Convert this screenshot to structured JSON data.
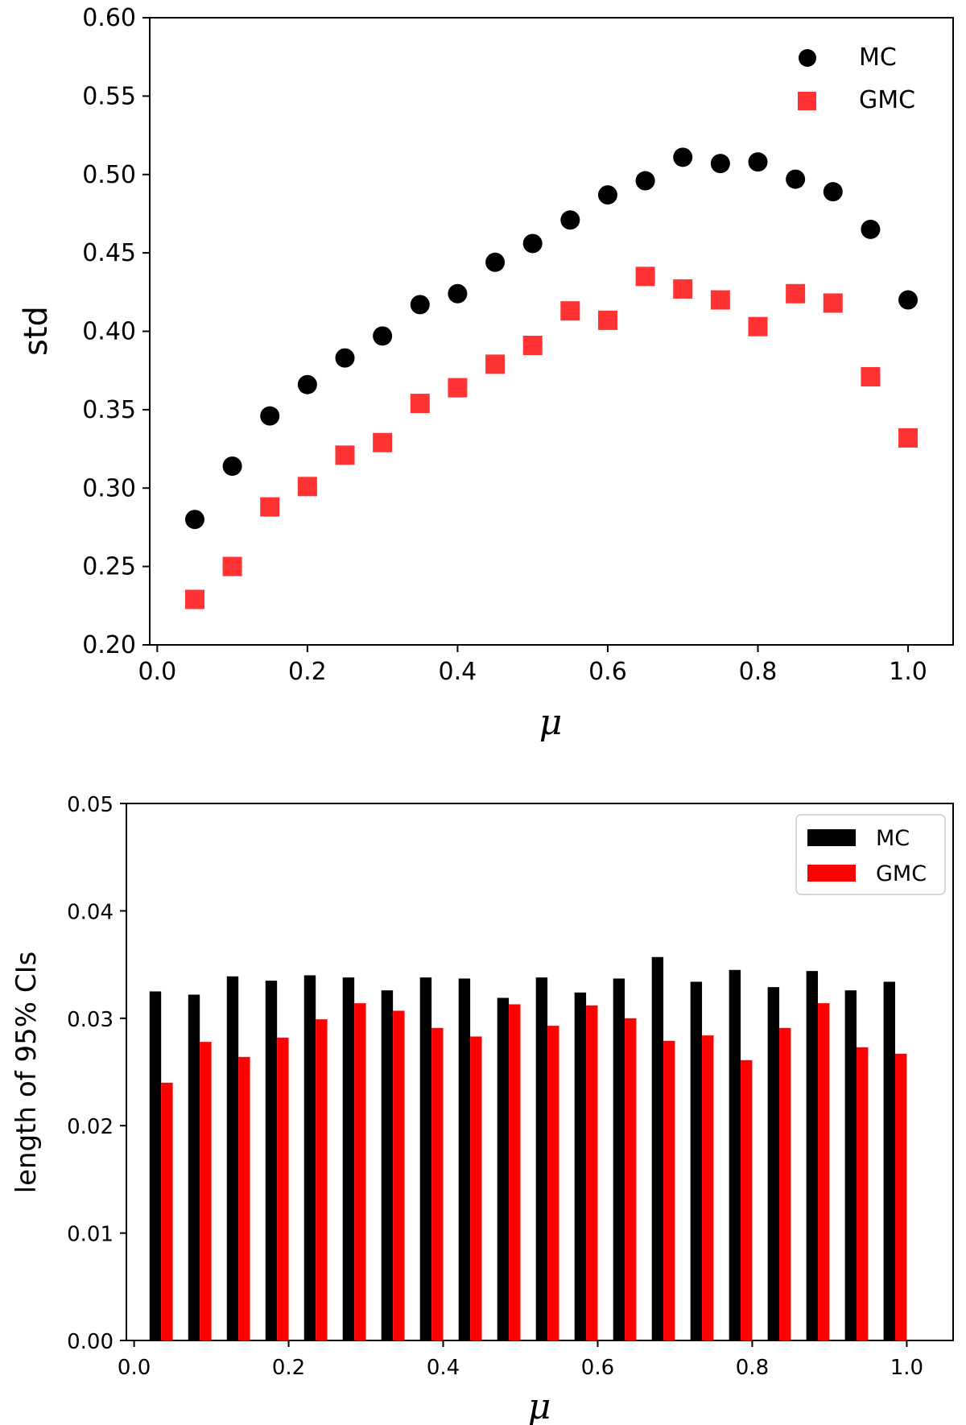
{
  "chart_data": [
    {
      "type": "scatter",
      "title": "",
      "xlabel": "μ",
      "ylabel": "std",
      "xlim": [
        -0.01,
        1.06
      ],
      "ylim": [
        0.2,
        0.6
      ],
      "xticks": [
        "0.0",
        "0.2",
        "0.4",
        "0.6",
        "0.8",
        "1.0"
      ],
      "yticks": [
        "0.20",
        "0.25",
        "0.30",
        "0.35",
        "0.40",
        "0.45",
        "0.50",
        "0.55",
        "0.60"
      ],
      "legend_position": "top-right",
      "x": [
        0.05,
        0.1,
        0.15,
        0.2,
        0.25,
        0.3,
        0.35,
        0.4,
        0.45,
        0.5,
        0.55,
        0.6,
        0.65,
        0.7,
        0.75,
        0.8,
        0.85,
        0.9,
        0.95,
        1.0
      ],
      "series": [
        {
          "name": "MC",
          "marker": "circle",
          "color": "#000000",
          "values": [
            0.28,
            0.314,
            0.346,
            0.366,
            0.383,
            0.397,
            0.417,
            0.424,
            0.444,
            0.456,
            0.471,
            0.487,
            0.496,
            0.511,
            0.507,
            0.508,
            0.497,
            0.489,
            0.465,
            0.42
          ]
        },
        {
          "name": "GMC",
          "marker": "square",
          "color": "#ff3333",
          "values": [
            0.229,
            0.25,
            0.288,
            0.301,
            0.321,
            0.329,
            0.354,
            0.364,
            0.379,
            0.391,
            0.413,
            0.407,
            0.435,
            0.427,
            0.42,
            0.403,
            0.424,
            0.418,
            0.371,
            0.332
          ]
        }
      ]
    },
    {
      "type": "bar",
      "title": "",
      "xlabel": "μ",
      "ylabel": "length of 95% CIs",
      "xlim": [
        -0.01,
        1.06
      ],
      "ylim": [
        0.0,
        0.05
      ],
      "xticks": [
        "0.0",
        "0.2",
        "0.4",
        "0.6",
        "0.8",
        "1.0"
      ],
      "yticks": [
        "0.00",
        "0.01",
        "0.02",
        "0.03",
        "0.04",
        "0.05"
      ],
      "legend_position": "top-right",
      "bar_width": 0.015,
      "categories": [
        0.05,
        0.1,
        0.15,
        0.2,
        0.25,
        0.3,
        0.35,
        0.4,
        0.45,
        0.5,
        0.55,
        0.6,
        0.65,
        0.7,
        0.75,
        0.8,
        0.85,
        0.9,
        0.95,
        1.0
      ],
      "series": [
        {
          "name": "MC",
          "color": "#000000",
          "values": [
            0.0325,
            0.0322,
            0.0339,
            0.0335,
            0.034,
            0.0338,
            0.0326,
            0.0338,
            0.0337,
            0.0319,
            0.0338,
            0.0324,
            0.0337,
            0.0357,
            0.0334,
            0.0345,
            0.0329,
            0.0344,
            0.0326,
            0.0334
          ]
        },
        {
          "name": "GMC",
          "color": "#ff0000",
          "values": [
            0.024,
            0.0278,
            0.0264,
            0.0282,
            0.0299,
            0.0314,
            0.0307,
            0.0291,
            0.0283,
            0.0313,
            0.0293,
            0.0312,
            0.03,
            0.0279,
            0.0284,
            0.0261,
            0.0291,
            0.0314,
            0.0273,
            0.0267
          ]
        }
      ]
    }
  ]
}
